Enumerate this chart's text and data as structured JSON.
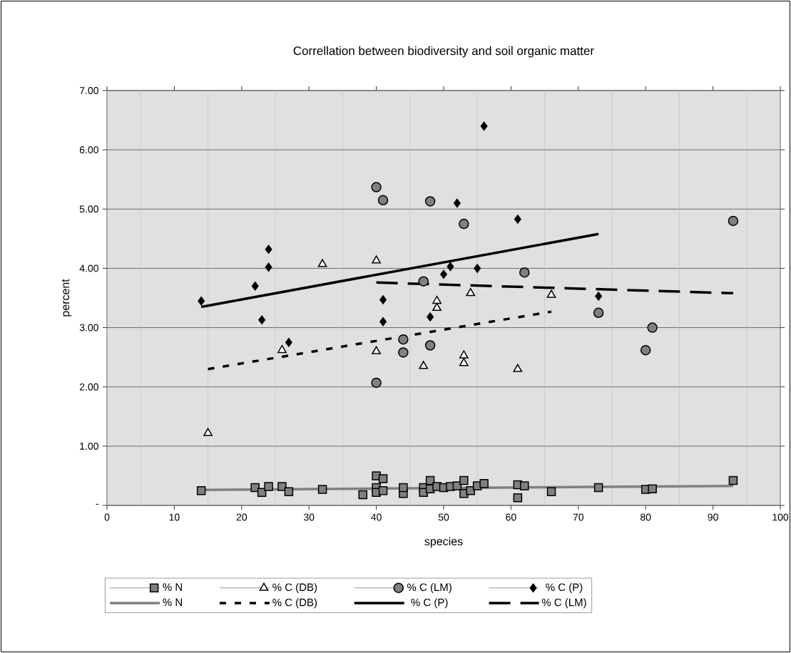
{
  "chart_data": {
    "type": "scatter",
    "title": "Correllation between biodiversity and soil organic matter",
    "xlabel": "species",
    "ylabel": "percent",
    "xlim": [
      0,
      100
    ],
    "xticks": [
      0,
      10,
      20,
      30,
      40,
      50,
      60,
      70,
      80,
      90,
      100
    ],
    "ylim": [
      0,
      7
    ],
    "yticks": [
      {
        "value": 0,
        "label": "-"
      },
      {
        "value": 1,
        "label": "1.00"
      },
      {
        "value": 2,
        "label": "2.00"
      },
      {
        "value": 3,
        "label": "3.00"
      },
      {
        "value": 4,
        "label": "4.00"
      },
      {
        "value": 5,
        "label": "5.00"
      },
      {
        "value": 6,
        "label": "6.00"
      },
      {
        "value": 7,
        "label": "7.00"
      }
    ],
    "grid": true,
    "legend": "bottom",
    "series": [
      {
        "name": "% N",
        "type": "scatter",
        "marker": "square",
        "color": "#808080",
        "x": [
          14,
          22,
          23,
          24,
          26,
          27,
          32,
          38,
          40,
          40,
          40,
          41,
          41,
          44,
          44,
          47,
          47,
          48,
          48,
          49,
          50,
          51,
          52,
          53,
          53,
          54,
          55,
          56,
          61,
          61,
          62,
          66,
          73,
          80,
          81,
          93
        ],
        "values": [
          0.25,
          0.3,
          0.22,
          0.32,
          0.32,
          0.23,
          0.27,
          0.18,
          0.5,
          0.3,
          0.22,
          0.45,
          0.25,
          0.2,
          0.3,
          0.3,
          0.22,
          0.42,
          0.28,
          0.32,
          0.3,
          0.32,
          0.33,
          0.42,
          0.2,
          0.25,
          0.33,
          0.37,
          0.35,
          0.13,
          0.33,
          0.23,
          0.3,
          0.27,
          0.28,
          0.42
        ]
      },
      {
        "name": "% C (DB)",
        "type": "scatter",
        "marker": "triangle",
        "color": "#ffffff",
        "x": [
          15,
          26,
          32,
          40,
          40,
          47,
          49,
          49,
          53,
          53,
          54,
          61,
          66
        ],
        "values": [
          1.22,
          2.62,
          4.07,
          4.13,
          2.6,
          2.35,
          3.45,
          3.33,
          2.53,
          2.4,
          3.58,
          2.3,
          3.55
        ]
      },
      {
        "name": "% C (LM)",
        "type": "scatter",
        "marker": "circle",
        "color": "#808080",
        "x": [
          40,
          41,
          48,
          53,
          47,
          62,
          44,
          44,
          48,
          40,
          73,
          80,
          81,
          93
        ],
        "values": [
          5.37,
          5.15,
          5.13,
          4.75,
          3.78,
          3.93,
          2.8,
          2.58,
          2.7,
          2.07,
          3.25,
          2.62,
          3.0,
          4.8
        ]
      },
      {
        "name": "% C (P)",
        "type": "scatter",
        "marker": "diamond",
        "color": "#000000",
        "x": [
          14,
          22,
          23,
          24,
          24,
          27,
          41,
          41,
          48,
          50,
          51,
          52,
          55,
          56,
          61,
          73
        ],
        "values": [
          3.45,
          3.7,
          3.13,
          4.32,
          4.02,
          2.75,
          3.47,
          3.1,
          3.18,
          3.9,
          4.03,
          5.1,
          4.0,
          6.4,
          4.83,
          3.53
        ]
      },
      {
        "name": "% N",
        "type": "line",
        "line_style": "solid",
        "color": "#808080",
        "x": [
          14,
          93
        ],
        "values": [
          0.26,
          0.33
        ]
      },
      {
        "name": "% C (DB)",
        "type": "line",
        "line_style": "dotted",
        "color": "#000000",
        "x": [
          15,
          66
        ],
        "values": [
          2.3,
          3.27
        ]
      },
      {
        "name": "% C (P)",
        "type": "line",
        "line_style": "solid",
        "color": "#000000",
        "x": [
          14,
          73
        ],
        "values": [
          3.35,
          4.58
        ]
      },
      {
        "name": "% C (LM)",
        "type": "line",
        "line_style": "dashed",
        "color": "#000000",
        "x": [
          40,
          93
        ],
        "values": [
          3.76,
          3.58
        ]
      }
    ]
  }
}
